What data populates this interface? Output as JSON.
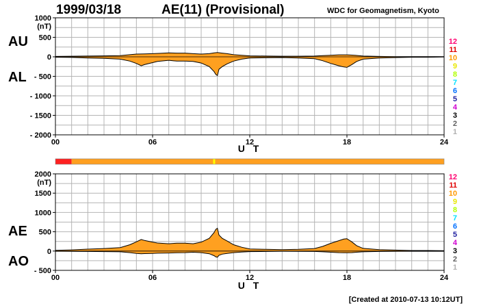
{
  "header": {
    "date": "1999/03/18",
    "title": "AE(11) (Provisional)",
    "institution": "WDC for Geomagnetism, Kyoto"
  },
  "footer": {
    "created": "[Created at 2010-07-13 10:12UT]"
  },
  "colors": {
    "fill": "#ffa020",
    "line": "#000000",
    "grid": "#b4b4b4",
    "bar_main": "#ffa020",
    "bar_start": "#ff2020",
    "bar_mark": "#ffff00"
  },
  "legend": {
    "levels": [
      {
        "label": "12",
        "color": "#ff0070"
      },
      {
        "label": "11",
        "color": "#e00000"
      },
      {
        "label": "10",
        "color": "#ff9900"
      },
      {
        "label": "9",
        "color": "#e8e800"
      },
      {
        "label": "8",
        "color": "#b0ff00"
      },
      {
        "label": "7",
        "color": "#00e0ff"
      },
      {
        "label": "6",
        "color": "#0070ff"
      },
      {
        "label": "5",
        "color": "#2020a0"
      },
      {
        "label": "4",
        "color": "#d000d0"
      },
      {
        "label": "3",
        "color": "#000000"
      },
      {
        "label": "2",
        "color": "#606060"
      },
      {
        "label": "1",
        "color": "#b0b0b0"
      }
    ]
  },
  "chart_data": [
    {
      "type": "area",
      "name": "AU/AL",
      "series_labels": [
        "AU",
        "AL"
      ],
      "unit": "(nT)",
      "xlabel": "U T",
      "xlim": [
        0,
        24
      ],
      "ylim": [
        -2000,
        1000
      ],
      "xticks": [
        "00",
        "06",
        "12",
        "18",
        "24"
      ],
      "yticks": [
        "1000",
        "500",
        "0",
        "- 500",
        "- 1000",
        "- 1500",
        "- 2000"
      ],
      "ytick_values": [
        1000,
        500,
        0,
        -500,
        -1000,
        -1500,
        -2000
      ],
      "grid": true,
      "upper": {
        "x": [
          0,
          1,
          2,
          3,
          4,
          4.6,
          5,
          5.5,
          6,
          6.5,
          7,
          7.5,
          8,
          8.5,
          9,
          9.5,
          9.8,
          10,
          10.3,
          10.6,
          11,
          11.5,
          12,
          13,
          14,
          15,
          16,
          16.5,
          17,
          17.5,
          18,
          18.5,
          19,
          20,
          21,
          22,
          23,
          24
        ],
        "y": [
          10,
          15,
          20,
          25,
          30,
          55,
          70,
          75,
          80,
          90,
          100,
          95,
          95,
          80,
          70,
          80,
          100,
          110,
          95,
          80,
          55,
          40,
          25,
          20,
          15,
          15,
          20,
          30,
          40,
          50,
          50,
          40,
          20,
          10,
          5,
          5,
          5,
          5
        ]
      },
      "lower": {
        "x": [
          0,
          1,
          2,
          3,
          4,
          4.6,
          5,
          5.3,
          5.5,
          6,
          6.3,
          7,
          7.5,
          8,
          8.5,
          9,
          9.5,
          9.8,
          9.9,
          10,
          10.1,
          10.3,
          10.6,
          11,
          11.5,
          12,
          13,
          14,
          15,
          16,
          16.5,
          17,
          17.5,
          17.8,
          18,
          18.3,
          18.6,
          19,
          20,
          21,
          22,
          23,
          24
        ],
        "y": [
          -10,
          -15,
          -30,
          -40,
          -60,
          -110,
          -170,
          -230,
          -200,
          -150,
          -120,
          -90,
          -110,
          -110,
          -120,
          -160,
          -250,
          -380,
          -450,
          -480,
          -320,
          -250,
          -180,
          -110,
          -60,
          -30,
          -25,
          -20,
          -30,
          -50,
          -100,
          -170,
          -230,
          -260,
          -270,
          -200,
          -120,
          -60,
          -30,
          -20,
          -10,
          -10,
          -5
        ]
      },
      "provisional_bar": {
        "segments": [
          {
            "from": 0,
            "to": 1,
            "color": "#ff2020"
          },
          {
            "from": 1,
            "to": 24,
            "color": "#ffa020"
          }
        ],
        "marks": [
          {
            "at": 9.8,
            "color": "#ffff00"
          }
        ]
      }
    },
    {
      "type": "area",
      "name": "AE/AO",
      "series_labels": [
        "AE",
        "AO"
      ],
      "unit": "(nT)",
      "xlabel": "U T",
      "xlim": [
        0,
        24
      ],
      "ylim": [
        -500,
        2000
      ],
      "xticks": [
        "00",
        "06",
        "12",
        "18",
        "24"
      ],
      "yticks": [
        "2000",
        "1500",
        "1000",
        "500",
        "0",
        "- 500"
      ],
      "ytick_values": [
        2000,
        1500,
        1000,
        500,
        0,
        -500
      ],
      "grid": true,
      "upper": {
        "x": [
          0,
          1,
          2,
          3,
          4,
          4.6,
          5,
          5.3,
          5.5,
          6,
          6.3,
          7,
          7.5,
          8,
          8.5,
          9,
          9.5,
          9.8,
          9.9,
          10,
          10.1,
          10.3,
          10.6,
          11,
          11.5,
          12,
          13,
          14,
          15,
          16,
          16.5,
          17,
          17.5,
          17.8,
          18,
          18.3,
          18.6,
          19,
          20,
          21,
          22,
          23,
          24
        ],
        "y": [
          20,
          30,
          50,
          65,
          90,
          165,
          240,
          300,
          275,
          230,
          210,
          190,
          205,
          205,
          190,
          230,
          330,
          480,
          560,
          590,
          415,
          330,
          260,
          165,
          100,
          55,
          45,
          35,
          45,
          65,
          120,
          200,
          270,
          310,
          320,
          240,
          140,
          70,
          35,
          25,
          15,
          15,
          10
        ]
      },
      "lower": {
        "x": [
          0,
          1,
          2,
          3,
          4,
          4.6,
          5,
          5.3,
          5.5,
          6,
          6.3,
          7,
          7.5,
          8,
          8.5,
          9,
          9.5,
          9.8,
          9.9,
          10,
          10.1,
          10.3,
          10.6,
          11,
          11.5,
          12,
          13,
          14,
          15,
          16,
          16.5,
          17,
          17.5,
          17.8,
          18,
          18.3,
          18.6,
          19,
          20,
          21,
          22,
          23,
          24
        ],
        "y": [
          -5,
          -8,
          -10,
          -15,
          -20,
          -40,
          -60,
          -70,
          -65,
          -60,
          -55,
          -50,
          -45,
          -40,
          -30,
          -40,
          -70,
          -120,
          -150,
          -160,
          -110,
          -80,
          -60,
          -40,
          -25,
          -15,
          -10,
          -5,
          -8,
          -10,
          -20,
          -30,
          -40,
          -45,
          -45,
          -40,
          -30,
          -20,
          -10,
          -8,
          -5,
          -5,
          -5
        ]
      }
    }
  ]
}
